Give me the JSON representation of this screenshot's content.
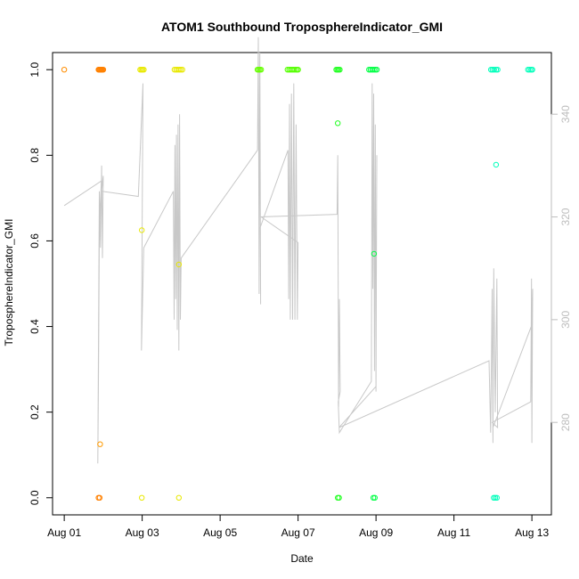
{
  "chart_data": {
    "type": "scatter",
    "title": "ATOM1 Southbound TroposphereIndicator_GMI",
    "xlabel": "Date",
    "ylabel": "TroposphereIndicator_GMI",
    "x_range_days": [
      -0.3,
      12.5
    ],
    "x_ticks": [
      {
        "day": 0,
        "label": "Aug 01"
      },
      {
        "day": 2,
        "label": "Aug 03"
      },
      {
        "day": 4,
        "label": "Aug 05"
      },
      {
        "day": 6,
        "label": "Aug 07"
      },
      {
        "day": 8,
        "label": "Aug 09"
      },
      {
        "day": 10,
        "label": "Aug 11"
      },
      {
        "day": 12,
        "label": "Aug 13"
      }
    ],
    "ylim": [
      -0.04,
      1.04
    ],
    "y_ticks": [
      0.0,
      0.2,
      0.4,
      0.6,
      0.8,
      1.0
    ],
    "y_tick_labels": [
      "0.0",
      "0.2",
      "0.4",
      "0.6",
      "0.8",
      "1.0"
    ],
    "y2_range": [
      262,
      352
    ],
    "y2_ticks": [
      280,
      300,
      320,
      340
    ],
    "y2_tick_labels": [
      "280",
      "300",
      "320",
      "340"
    ],
    "grid": false,
    "points": [
      {
        "x": 0.0,
        "y": 1.0,
        "color": "#ff8c00"
      },
      {
        "x": 0.88,
        "y": 1.0,
        "color": "#ff8000"
      },
      {
        "x": 0.9,
        "y": 1.0,
        "color": "#ff8000"
      },
      {
        "x": 0.92,
        "y": 1.0,
        "color": "#ff8000"
      },
      {
        "x": 0.94,
        "y": 1.0,
        "color": "#ff8000"
      },
      {
        "x": 0.96,
        "y": 1.0,
        "color": "#ff8000"
      },
      {
        "x": 0.98,
        "y": 1.0,
        "color": "#ff8000"
      },
      {
        "x": 1.0,
        "y": 1.0,
        "color": "#ff8000"
      },
      {
        "x": 0.92,
        "y": 0.125,
        "color": "#ff9a00"
      },
      {
        "x": 0.88,
        "y": 0.0,
        "color": "#ff8000"
      },
      {
        "x": 0.91,
        "y": 0.0,
        "color": "#ff8000"
      },
      {
        "x": 1.95,
        "y": 1.0,
        "color": "#e8e800"
      },
      {
        "x": 1.98,
        "y": 1.0,
        "color": "#e8e800"
      },
      {
        "x": 2.01,
        "y": 1.0,
        "color": "#e8e800"
      },
      {
        "x": 2.04,
        "y": 1.0,
        "color": "#e8e800"
      },
      {
        "x": 1.99,
        "y": 0.625,
        "color": "#e8e800"
      },
      {
        "x": 1.99,
        "y": 0.0,
        "color": "#e8e800"
      },
      {
        "x": 2.83,
        "y": 1.0,
        "color": "#e8e800"
      },
      {
        "x": 2.87,
        "y": 1.0,
        "color": "#e8e800"
      },
      {
        "x": 2.91,
        "y": 1.0,
        "color": "#e8e800"
      },
      {
        "x": 2.95,
        "y": 1.0,
        "color": "#e8e800"
      },
      {
        "x": 2.99,
        "y": 1.0,
        "color": "#e8e800"
      },
      {
        "x": 3.03,
        "y": 1.0,
        "color": "#e8e800"
      },
      {
        "x": 2.94,
        "y": 0.545,
        "color": "#e8e800"
      },
      {
        "x": 2.94,
        "y": 0.0,
        "color": "#e8e800"
      },
      {
        "x": 4.96,
        "y": 1.0,
        "color": "#66ff00"
      },
      {
        "x": 4.99,
        "y": 1.0,
        "color": "#66ff00"
      },
      {
        "x": 5.02,
        "y": 1.0,
        "color": "#66ff00"
      },
      {
        "x": 5.05,
        "y": 1.0,
        "color": "#66ff00"
      },
      {
        "x": 5.73,
        "y": 1.0,
        "color": "#55ff00"
      },
      {
        "x": 5.77,
        "y": 1.0,
        "color": "#55ff00"
      },
      {
        "x": 5.81,
        "y": 1.0,
        "color": "#55ff00"
      },
      {
        "x": 5.85,
        "y": 1.0,
        "color": "#55ff00"
      },
      {
        "x": 5.89,
        "y": 1.0,
        "color": "#55ff00"
      },
      {
        "x": 5.93,
        "y": 1.0,
        "color": "#55ff00"
      },
      {
        "x": 5.97,
        "y": 1.0,
        "color": "#55ff00"
      },
      {
        "x": 6.0,
        "y": 1.0,
        "color": "#55ff00"
      },
      {
        "x": 6.98,
        "y": 1.0,
        "color": "#22ff22"
      },
      {
        "x": 7.01,
        "y": 1.0,
        "color": "#22ff22"
      },
      {
        "x": 7.04,
        "y": 1.0,
        "color": "#22ff22"
      },
      {
        "x": 7.07,
        "y": 1.0,
        "color": "#22ff22"
      },
      {
        "x": 7.02,
        "y": 0.875,
        "color": "#22ff22"
      },
      {
        "x": 7.02,
        "y": 0.0,
        "color": "#22ff22"
      },
      {
        "x": 7.05,
        "y": 0.0,
        "color": "#22ff22"
      },
      {
        "x": 7.82,
        "y": 1.0,
        "color": "#00ff44"
      },
      {
        "x": 7.86,
        "y": 1.0,
        "color": "#00ff44"
      },
      {
        "x": 7.9,
        "y": 1.0,
        "color": "#00ff44"
      },
      {
        "x": 7.94,
        "y": 1.0,
        "color": "#00ff44"
      },
      {
        "x": 7.98,
        "y": 1.0,
        "color": "#00ff44"
      },
      {
        "x": 8.02,
        "y": 1.0,
        "color": "#00ff44"
      },
      {
        "x": 7.95,
        "y": 0.57,
        "color": "#00ff44"
      },
      {
        "x": 7.93,
        "y": 0.0,
        "color": "#00ff44"
      },
      {
        "x": 7.97,
        "y": 0.0,
        "color": "#00ff44"
      },
      {
        "x": 10.95,
        "y": 1.0,
        "color": "#00ffbb"
      },
      {
        "x": 10.99,
        "y": 1.0,
        "color": "#00ffbb"
      },
      {
        "x": 11.03,
        "y": 1.0,
        "color": "#00ffbb"
      },
      {
        "x": 11.08,
        "y": 1.0,
        "color": "#00ffbb"
      },
      {
        "x": 11.12,
        "y": 1.0,
        "color": "#00ffbb"
      },
      {
        "x": 11.08,
        "y": 0.778,
        "color": "#00ffbb"
      },
      {
        "x": 11.02,
        "y": 0.0,
        "color": "#00ffbb"
      },
      {
        "x": 11.06,
        "y": 0.0,
        "color": "#00ffbb"
      },
      {
        "x": 11.1,
        "y": 0.0,
        "color": "#00ffbb"
      },
      {
        "x": 11.9,
        "y": 1.0,
        "color": "#00ffbb"
      },
      {
        "x": 11.94,
        "y": 1.0,
        "color": "#00ffbb"
      },
      {
        "x": 11.98,
        "y": 1.0,
        "color": "#00ffbb"
      },
      {
        "x": 12.01,
        "y": 1.0,
        "color": "#00ffbb"
      }
    ],
    "temperature_trace_color": "#c8c8c8",
    "temperature_trace": [
      [
        0.0,
        322.2
      ],
      [
        0.95,
        327.0
      ],
      [
        0.9,
        316.0
      ],
      [
        0.88,
        290.0
      ],
      [
        0.86,
        272.0
      ],
      [
        0.9,
        325.0
      ],
      [
        0.93,
        314.0
      ],
      [
        0.96,
        330.0
      ],
      [
        0.98,
        312.0
      ],
      [
        1.0,
        328.0
      ],
      [
        0.96,
        325.0
      ],
      [
        1.9,
        324.0
      ],
      [
        2.02,
        346.0
      ],
      [
        2.0,
        318.0
      ],
      [
        1.98,
        294.0
      ],
      [
        2.04,
        314.0
      ],
      [
        2.8,
        325.0
      ],
      [
        2.82,
        300.0
      ],
      [
        2.84,
        334.0
      ],
      [
        2.86,
        304.0
      ],
      [
        2.88,
        336.0
      ],
      [
        2.9,
        298.0
      ],
      [
        2.92,
        338.0
      ],
      [
        2.94,
        294.0
      ],
      [
        2.96,
        340.0
      ],
      [
        2.98,
        300.0
      ],
      [
        3.0,
        312.0
      ],
      [
        4.96,
        333.0
      ],
      [
        4.98,
        355.0
      ],
      [
        5.0,
        305.0
      ],
      [
        5.02,
        352.0
      ],
      [
        5.04,
        303.0
      ],
      [
        5.03,
        318.0
      ],
      [
        5.74,
        333.0
      ],
      [
        5.76,
        304.0
      ],
      [
        5.78,
        342.0
      ],
      [
        5.8,
        300.0
      ],
      [
        5.83,
        344.0
      ],
      [
        5.86,
        300.0
      ],
      [
        5.89,
        346.0
      ],
      [
        5.92,
        300.0
      ],
      [
        5.95,
        338.0
      ],
      [
        5.98,
        300.0
      ],
      [
        6.0,
        315.0
      ],
      [
        5.05,
        320.0
      ],
      [
        7.0,
        320.5
      ],
      [
        7.02,
        332.0
      ],
      [
        7.04,
        283.0
      ],
      [
        7.06,
        304.0
      ],
      [
        7.08,
        286.0
      ],
      [
        7.03,
        284.0
      ],
      [
        7.06,
        278.0
      ],
      [
        7.88,
        288.0
      ],
      [
        7.9,
        346.0
      ],
      [
        7.92,
        306.0
      ],
      [
        7.94,
        344.0
      ],
      [
        7.96,
        290.0
      ],
      [
        7.98,
        338.0
      ],
      [
        8.0,
        286.0
      ],
      [
        8.02,
        332.0
      ],
      [
        8.0,
        287.0
      ],
      [
        7.05,
        279.0
      ],
      [
        10.9,
        292.0
      ],
      [
        10.94,
        278.0
      ],
      [
        10.98,
        306.0
      ],
      [
        11.0,
        276.0
      ],
      [
        11.02,
        310.0
      ],
      [
        11.06,
        282.0
      ],
      [
        11.1,
        308.0
      ],
      [
        11.12,
        279.0
      ],
      [
        10.98,
        280.0
      ],
      [
        11.97,
        284.0
      ],
      [
        11.99,
        308.0
      ],
      [
        12.0,
        276.0
      ],
      [
        12.02,
        306.0
      ],
      [
        12.0,
        299.0
      ],
      [
        11.0,
        279.0
      ]
    ]
  }
}
